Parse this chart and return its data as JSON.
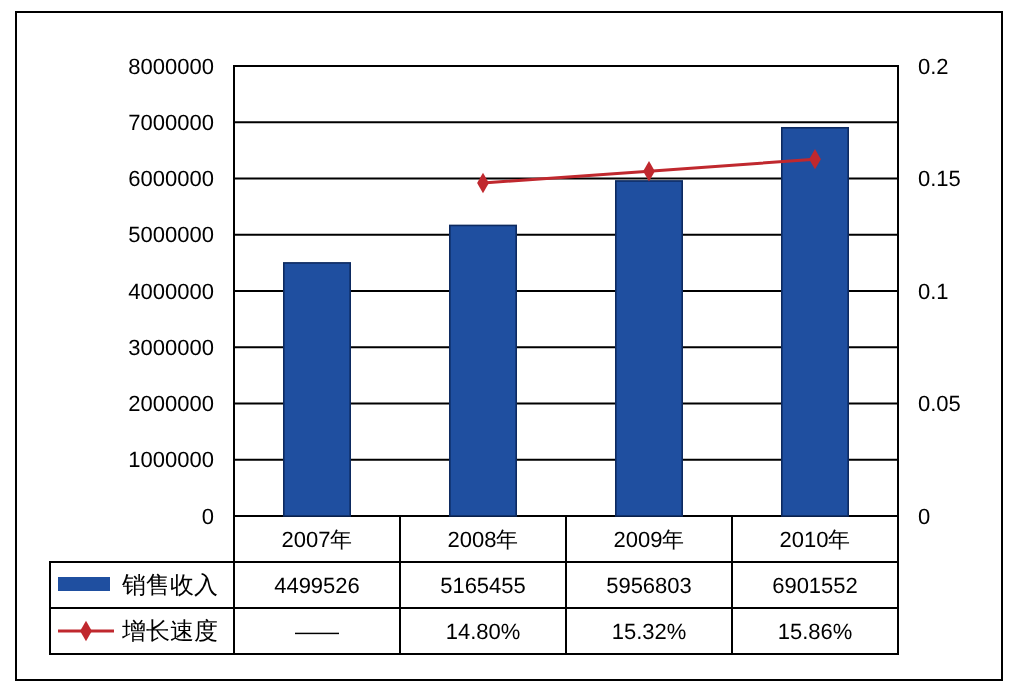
{
  "chart_data": {
    "type": "bar",
    "categories": [
      "2007年",
      "2008年",
      "2009年",
      "2010年"
    ],
    "series": [
      {
        "name": "销售收入",
        "color": "#1f4fa0",
        "values": [
          4499526,
          5165455,
          5956803,
          6901552
        ],
        "value_labels": [
          "4499526",
          "5165455",
          "5956803",
          "6901552"
        ]
      },
      {
        "name": "增长速度",
        "type": "line",
        "axis": "y2",
        "color": "#c0282e",
        "marker": "diamond",
        "values": [
          null,
          0.148,
          0.1532,
          0.1586
        ],
        "value_labels": [
          "——",
          "14.80%",
          "15.32%",
          "15.86%"
        ]
      }
    ],
    "ylim": [
      0,
      8000000
    ],
    "yticks": [
      0,
      1000000,
      2000000,
      3000000,
      4000000,
      5000000,
      6000000,
      7000000,
      8000000
    ],
    "y2lim": [
      0,
      0.2
    ],
    "y2ticks": [
      0,
      0.05,
      0.1,
      0.15,
      0.2
    ],
    "grid": "y",
    "legend": "bottom"
  }
}
